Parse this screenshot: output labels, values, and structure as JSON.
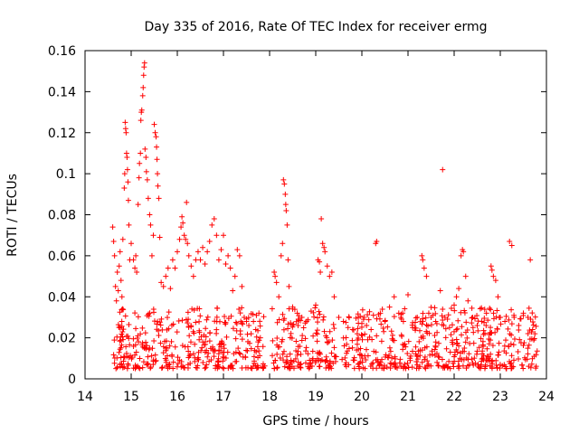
{
  "chart_data": {
    "type": "scatter",
    "title": "Day 335 of 2016, Rate Of TEC Index for receiver ermg",
    "xlabel": "GPS time / hours",
    "ylabel": "ROTI / TECUs",
    "xlim": [
      14,
      24
    ],
    "ylim": [
      0,
      0.16
    ],
    "x_ticks": [
      14,
      15,
      16,
      17,
      18,
      19,
      20,
      21,
      22,
      23,
      24
    ],
    "y_ticks": [
      0,
      0.02,
      0.04,
      0.06,
      0.08,
      0.1,
      0.12,
      0.14,
      0.16
    ],
    "x_tick_labels": [
      "14",
      "15",
      "16",
      "17",
      "18",
      "19",
      "20",
      "21",
      "22",
      "23",
      "24"
    ],
    "y_tick_labels": [
      "0",
      "0.02",
      "0.04",
      "0.06",
      "0.08",
      "0.1",
      "0.12",
      "0.14",
      "0.16"
    ],
    "marker": "+",
    "marker_color": "#ff0000",
    "grid": false,
    "series": [
      {
        "name": "ROTI",
        "points": [
          [
            14.6,
            0.074
          ],
          [
            14.62,
            0.067
          ],
          [
            14.64,
            0.06
          ],
          [
            14.66,
            0.045
          ],
          [
            14.68,
            0.038
          ],
          [
            14.7,
            0.052
          ],
          [
            14.72,
            0.043
          ],
          [
            14.74,
            0.055
          ],
          [
            14.76,
            0.062
          ],
          [
            14.78,
            0.048
          ],
          [
            14.8,
            0.04
          ],
          [
            14.82,
            0.068
          ],
          [
            14.85,
            0.093
          ],
          [
            14.86,
            0.1
          ],
          [
            14.87,
            0.125
          ],
          [
            14.88,
            0.122
          ],
          [
            14.89,
            0.12
          ],
          [
            14.9,
            0.11
          ],
          [
            14.91,
            0.108
          ],
          [
            14.92,
            0.102
          ],
          [
            14.93,
            0.096
          ],
          [
            14.94,
            0.087
          ],
          [
            14.95,
            0.075
          ],
          [
            14.97,
            0.058
          ],
          [
            15.0,
            0.066
          ],
          [
            15.05,
            0.058
          ],
          [
            15.08,
            0.054
          ],
          [
            15.1,
            0.06
          ],
          [
            15.12,
            0.052
          ],
          [
            15.15,
            0.085
          ],
          [
            15.17,
            0.098
          ],
          [
            15.18,
            0.105
          ],
          [
            15.2,
            0.11
          ],
          [
            15.21,
            0.126
          ],
          [
            15.22,
            0.13
          ],
          [
            15.23,
            0.131
          ],
          [
            15.25,
            0.138
          ],
          [
            15.26,
            0.142
          ],
          [
            15.27,
            0.148
          ],
          [
            15.28,
            0.152
          ],
          [
            15.29,
            0.154
          ],
          [
            15.3,
            0.112
          ],
          [
            15.32,
            0.108
          ],
          [
            15.33,
            0.101
          ],
          [
            15.35,
            0.097
          ],
          [
            15.37,
            0.088
          ],
          [
            15.4,
            0.08
          ],
          [
            15.42,
            0.075
          ],
          [
            15.45,
            0.06
          ],
          [
            15.48,
            0.07
          ],
          [
            15.5,
            0.124
          ],
          [
            15.52,
            0.12
          ],
          [
            15.54,
            0.118
          ],
          [
            15.55,
            0.113
          ],
          [
            15.56,
            0.107
          ],
          [
            15.57,
            0.1
          ],
          [
            15.58,
            0.094
          ],
          [
            15.6,
            0.088
          ],
          [
            15.62,
            0.069
          ],
          [
            15.65,
            0.047
          ],
          [
            15.7,
            0.045
          ],
          [
            15.75,
            0.05
          ],
          [
            15.8,
            0.054
          ],
          [
            15.85,
            0.044
          ],
          [
            15.9,
            0.058
          ],
          [
            15.95,
            0.054
          ],
          [
            16.0,
            0.062
          ],
          [
            16.05,
            0.068
          ],
          [
            16.08,
            0.074
          ],
          [
            16.1,
            0.079
          ],
          [
            16.12,
            0.076
          ],
          [
            16.15,
            0.07
          ],
          [
            16.18,
            0.068
          ],
          [
            16.2,
            0.086
          ],
          [
            16.22,
            0.066
          ],
          [
            16.25,
            0.06
          ],
          [
            16.3,
            0.055
          ],
          [
            16.35,
            0.05
          ],
          [
            16.4,
            0.058
          ],
          [
            16.45,
            0.062
          ],
          [
            16.5,
            0.058
          ],
          [
            16.55,
            0.064
          ],
          [
            16.6,
            0.056
          ],
          [
            16.65,
            0.062
          ],
          [
            16.7,
            0.067
          ],
          [
            16.75,
            0.075
          ],
          [
            16.8,
            0.078
          ],
          [
            16.85,
            0.07
          ],
          [
            16.9,
            0.058
          ],
          [
            16.95,
            0.063
          ],
          [
            17.0,
            0.07
          ],
          [
            17.05,
            0.056
          ],
          [
            17.1,
            0.06
          ],
          [
            17.15,
            0.054
          ],
          [
            17.2,
            0.043
          ],
          [
            17.25,
            0.05
          ],
          [
            17.3,
            0.063
          ],
          [
            17.35,
            0.06
          ],
          [
            17.4,
            0.045
          ],
          [
            17.45,
            0.03
          ],
          [
            17.5,
            0.028
          ],
          [
            17.55,
            0.026
          ],
          [
            17.6,
            0.022
          ],
          [
            17.65,
            0.028
          ],
          [
            17.7,
            0.024
          ],
          [
            17.75,
            0.018
          ],
          [
            17.8,
            0.02
          ],
          [
            18.1,
            0.052
          ],
          [
            18.12,
            0.05
          ],
          [
            18.15,
            0.047
          ],
          [
            18.2,
            0.04
          ],
          [
            18.25,
            0.06
          ],
          [
            18.28,
            0.066
          ],
          [
            18.3,
            0.097
          ],
          [
            18.32,
            0.095
          ],
          [
            18.34,
            0.09
          ],
          [
            18.35,
            0.085
          ],
          [
            18.36,
            0.082
          ],
          [
            18.38,
            0.075
          ],
          [
            18.4,
            0.058
          ],
          [
            18.42,
            0.045
          ],
          [
            18.5,
            0.035
          ],
          [
            18.6,
            0.032
          ],
          [
            18.7,
            0.03
          ],
          [
            18.8,
            0.028
          ],
          [
            18.9,
            0.033
          ],
          [
            19.0,
            0.036
          ],
          [
            19.05,
            0.058
          ],
          [
            19.08,
            0.057
          ],
          [
            19.1,
            0.052
          ],
          [
            19.12,
            0.078
          ],
          [
            19.15,
            0.066
          ],
          [
            19.18,
            0.064
          ],
          [
            19.2,
            0.062
          ],
          [
            19.25,
            0.055
          ],
          [
            19.3,
            0.05
          ],
          [
            19.35,
            0.052
          ],
          [
            19.4,
            0.04
          ],
          [
            19.5,
            0.03
          ],
          [
            19.6,
            0.028
          ],
          [
            19.7,
            0.025
          ],
          [
            19.8,
            0.024
          ],
          [
            19.9,
            0.022
          ],
          [
            20.0,
            0.027
          ],
          [
            20.1,
            0.026
          ],
          [
            20.2,
            0.024
          ],
          [
            20.3,
            0.066
          ],
          [
            20.32,
            0.067
          ],
          [
            20.4,
            0.032
          ],
          [
            20.5,
            0.028
          ],
          [
            20.6,
            0.035
          ],
          [
            20.7,
            0.04
          ],
          [
            20.8,
            0.032
          ],
          [
            20.9,
            0.028
          ],
          [
            21.0,
            0.041
          ],
          [
            21.1,
            0.025
          ],
          [
            21.2,
            0.03
          ],
          [
            21.3,
            0.06
          ],
          [
            21.32,
            0.058
          ],
          [
            21.35,
            0.054
          ],
          [
            21.4,
            0.05
          ],
          [
            21.45,
            0.032
          ],
          [
            21.5,
            0.03
          ],
          [
            21.6,
            0.028
          ],
          [
            21.7,
            0.043
          ],
          [
            21.75,
            0.102
          ],
          [
            21.8,
            0.03
          ],
          [
            21.9,
            0.025
          ],
          [
            22.0,
            0.036
          ],
          [
            22.05,
            0.04
          ],
          [
            22.1,
            0.044
          ],
          [
            22.15,
            0.06
          ],
          [
            22.18,
            0.063
          ],
          [
            22.2,
            0.062
          ],
          [
            22.25,
            0.05
          ],
          [
            22.3,
            0.038
          ],
          [
            22.4,
            0.03
          ],
          [
            22.5,
            0.026
          ],
          [
            22.6,
            0.028
          ],
          [
            22.7,
            0.032
          ],
          [
            22.8,
            0.055
          ],
          [
            22.82,
            0.053
          ],
          [
            22.85,
            0.05
          ],
          [
            22.9,
            0.048
          ],
          [
            22.95,
            0.04
          ],
          [
            23.0,
            0.03
          ],
          [
            23.1,
            0.028
          ],
          [
            23.2,
            0.067
          ],
          [
            23.25,
            0.065
          ],
          [
            23.3,
            0.03
          ],
          [
            23.4,
            0.026
          ],
          [
            23.5,
            0.032
          ],
          [
            23.6,
            0.03
          ],
          [
            23.65,
            0.058
          ],
          [
            23.7,
            0.024
          ],
          [
            23.75,
            0.022
          ]
        ],
        "dense_band": {
          "description": "dense cloud of low values near the baseline",
          "segments": [
            [
              14.6,
              17.9
            ],
            [
              18.05,
              19.45
            ],
            [
              19.55,
              23.8
            ]
          ],
          "y_range": [
            0.005,
            0.035
          ]
        }
      }
    ]
  }
}
